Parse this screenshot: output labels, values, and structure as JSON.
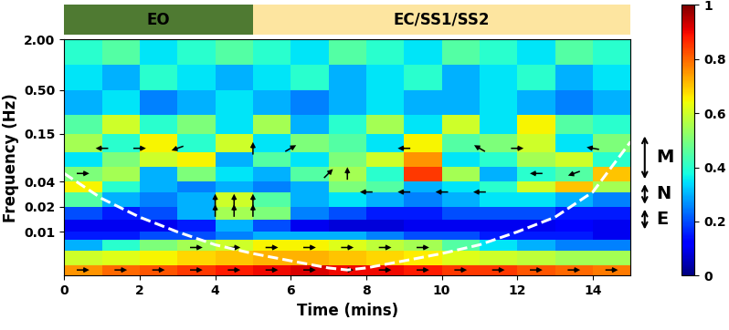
{
  "chart_data": {
    "type": "heatmap",
    "xlabel": "Time (mins)",
    "ylabel": "Frequency (Hz)",
    "log": "y",
    "xlim": [
      0,
      15
    ],
    "xticks": [
      0,
      2,
      4,
      6,
      8,
      10,
      12,
      14
    ],
    "ylim": [
      0.003,
      2
    ],
    "yticks": [
      {
        "value": 0.01,
        "label": "0.01"
      },
      {
        "value": 0.02,
        "label": "0.02"
      },
      {
        "value": 0.04,
        "label": "0.04"
      },
      {
        "value": 0.15,
        "label": "0.15"
      },
      {
        "value": 0.5,
        "label": "0.50"
      },
      {
        "value": 2,
        "label": "2.00"
      }
    ],
    "conditions": [
      {
        "label": "EO",
        "start": 0,
        "end": 5,
        "color": "#4f7a32"
      },
      {
        "label": "EC/SS1/SS2",
        "start": 5,
        "end": 15,
        "color": "#fde5a0"
      }
    ],
    "bands": [
      {
        "label": "M",
        "low": 0.04,
        "high": 0.15
      },
      {
        "label": "N",
        "low": 0.02,
        "high": 0.04
      },
      {
        "label": "E",
        "low": 0.01,
        "high": 0.02
      }
    ],
    "coherence": {
      "time_edges": [
        0,
        1,
        2,
        3,
        4,
        5,
        6,
        7,
        8,
        9,
        10,
        11,
        12,
        13,
        14,
        15
      ],
      "freq_edges": [
        0.003,
        0.004,
        0.006,
        0.008,
        0.01,
        0.014,
        0.02,
        0.03,
        0.04,
        0.06,
        0.09,
        0.15,
        0.25,
        0.5,
        1.0,
        2.0
      ],
      "values": [
        [
          0.75,
          0.8,
          0.82,
          0.85,
          0.88,
          0.9,
          0.92,
          0.9,
          0.9,
          0.88,
          0.85,
          0.85,
          0.82,
          0.8,
          0.78
        ],
        [
          0.6,
          0.62,
          0.65,
          0.68,
          0.7,
          0.72,
          0.72,
          0.7,
          0.68,
          0.66,
          0.62,
          0.6,
          0.58,
          0.55,
          0.55
        ],
        [
          0.3,
          0.4,
          0.5,
          0.55,
          0.6,
          0.65,
          0.65,
          0.62,
          0.58,
          0.55,
          0.45,
          0.35,
          0.3,
          0.25,
          0.25
        ],
        [
          0.15,
          0.15,
          0.2,
          0.2,
          0.25,
          0.3,
          0.3,
          0.3,
          0.25,
          0.2,
          0.2,
          0.15,
          0.15,
          0.15,
          0.1
        ],
        [
          0.1,
          0.1,
          0.1,
          0.15,
          0.3,
          0.2,
          0.1,
          0.08,
          0.08,
          0.1,
          0.1,
          0.1,
          0.1,
          0.12,
          0.1
        ],
        [
          0.2,
          0.15,
          0.2,
          0.3,
          0.55,
          0.5,
          0.25,
          0.2,
          0.15,
          0.15,
          0.2,
          0.2,
          0.2,
          0.15,
          0.15
        ],
        [
          0.45,
          0.3,
          0.25,
          0.3,
          0.6,
          0.45,
          0.3,
          0.35,
          0.3,
          0.25,
          0.3,
          0.35,
          0.35,
          0.3,
          0.25
        ],
        [
          0.65,
          0.4,
          0.3,
          0.25,
          0.3,
          0.25,
          0.3,
          0.5,
          0.45,
          0.3,
          0.35,
          0.4,
          0.6,
          0.7,
          0.55
        ],
        [
          0.5,
          0.55,
          0.3,
          0.5,
          0.35,
          0.3,
          0.45,
          0.55,
          0.4,
          0.85,
          0.55,
          0.3,
          0.4,
          0.45,
          0.7
        ],
        [
          0.35,
          0.5,
          0.6,
          0.65,
          0.3,
          0.45,
          0.35,
          0.5,
          0.6,
          0.75,
          0.35,
          0.4,
          0.55,
          0.6,
          0.4
        ],
        [
          0.55,
          0.4,
          0.65,
          0.4,
          0.6,
          0.35,
          0.5,
          0.45,
          0.35,
          0.65,
          0.45,
          0.5,
          0.6,
          0.35,
          0.5
        ],
        [
          0.45,
          0.6,
          0.4,
          0.5,
          0.35,
          0.55,
          0.3,
          0.4,
          0.55,
          0.35,
          0.6,
          0.35,
          0.65,
          0.45,
          0.4
        ],
        [
          0.3,
          0.35,
          0.25,
          0.3,
          0.35,
          0.3,
          0.25,
          0.3,
          0.35,
          0.3,
          0.3,
          0.35,
          0.3,
          0.25,
          0.3
        ],
        [
          0.35,
          0.3,
          0.4,
          0.35,
          0.3,
          0.35,
          0.4,
          0.3,
          0.35,
          0.4,
          0.3,
          0.35,
          0.4,
          0.3,
          0.35
        ],
        [
          0.4,
          0.45,
          0.35,
          0.4,
          0.45,
          0.4,
          0.35,
          0.45,
          0.4,
          0.35,
          0.45,
          0.4,
          0.35,
          0.45,
          0.4
        ]
      ]
    },
    "colorbar": {
      "range": [
        0,
        1
      ],
      "ticks": [
        0,
        0.2,
        0.4,
        0.6,
        0.8,
        1
      ]
    },
    "cone_of_influence": {
      "time": [
        0,
        1,
        2,
        3,
        4,
        5,
        6,
        7,
        7.5,
        8,
        9,
        10,
        11,
        12,
        13,
        14,
        15
      ],
      "frequency": [
        0.05,
        0.025,
        0.015,
        0.01,
        0.007,
        0.0055,
        0.0045,
        0.0037,
        0.0035,
        0.0037,
        0.0045,
        0.0055,
        0.007,
        0.01,
        0.015,
        0.03,
        0.12
      ]
    },
    "phase_arrows": {
      "time": [
        0.5,
        1.5,
        2.5,
        3.5,
        4.5,
        5.5,
        6.5,
        7.5,
        8.5,
        9.5,
        10.5,
        11.5,
        12.5,
        13.5,
        14.5,
        3.5,
        4.5,
        5.5,
        6.5,
        7.5,
        8.5,
        9.5,
        4,
        4.5,
        5,
        4,
        4.5,
        5,
        8,
        9,
        10,
        11,
        0.5,
        7,
        7.5,
        12.5,
        13.5,
        1,
        2,
        3,
        5,
        6,
        9,
        11,
        12,
        14
      ],
      "frequency": [
        0.0035,
        0.0035,
        0.0035,
        0.0035,
        0.0035,
        0.0035,
        0.0035,
        0.0035,
        0.0035,
        0.0035,
        0.0035,
        0.0035,
        0.0035,
        0.0035,
        0.0035,
        0.0065,
        0.0065,
        0.0065,
        0.0065,
        0.0065,
        0.0065,
        0.0065,
        0.018,
        0.018,
        0.018,
        0.024,
        0.024,
        0.024,
        0.03,
        0.03,
        0.03,
        0.03,
        0.05,
        0.05,
        0.05,
        0.05,
        0.05,
        0.1,
        0.1,
        0.1,
        0.1,
        0.1,
        0.1,
        0.1,
        0.1,
        0.1
      ],
      "angle": [
        0,
        0,
        0,
        0,
        0,
        0,
        0,
        0,
        0,
        0,
        0,
        0,
        0,
        0,
        0,
        0,
        0,
        0,
        0,
        0,
        0,
        0,
        90,
        90,
        90,
        90,
        90,
        90,
        180,
        180,
        180,
        180,
        0,
        45,
        90,
        180,
        200,
        180,
        0,
        200,
        90,
        30,
        180,
        150,
        0,
        170
      ]
    }
  }
}
